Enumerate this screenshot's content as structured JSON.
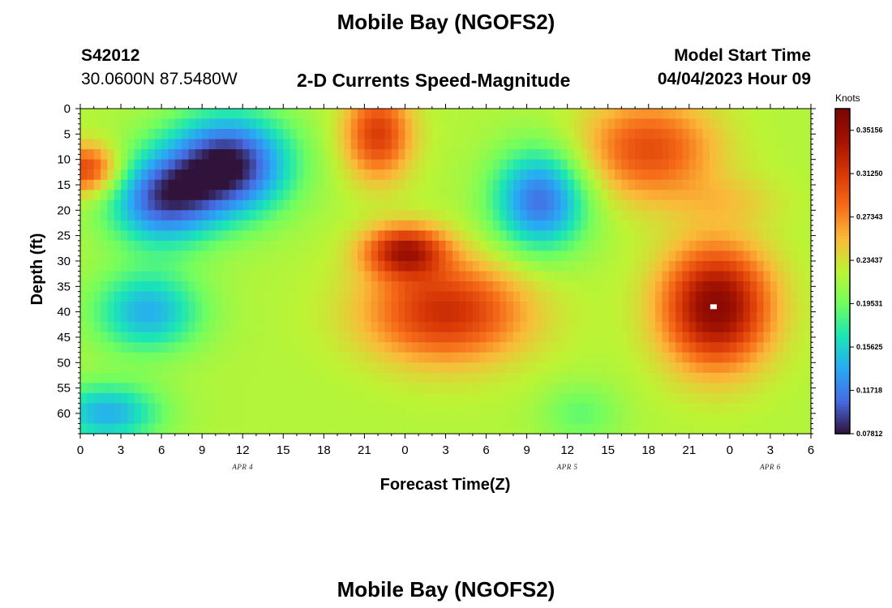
{
  "header": {
    "title": "Mobile Bay (NGOFS2)",
    "station_id": "S42012",
    "location": "30.0600N  87.5480W",
    "subtitle": "2-D Currents Speed-Magnitude",
    "model_start_label": "Model Start Time",
    "model_start_value": "04/04/2023 Hour 09"
  },
  "footer": {
    "title": "Mobile Bay (NGOFS2)"
  },
  "colors": {
    "low": "#30123b",
    "high": "#7a0403",
    "marker": "#ffffff"
  },
  "chart_data": {
    "type": "heatmap",
    "colormap": "turbo",
    "xlabel": "Forecast Time(Z)",
    "ylabel": "Depth (ft)",
    "x_tick_labels": [
      "0",
      "3",
      "6",
      "9",
      "12",
      "15",
      "18",
      "21",
      "0",
      "3",
      "6",
      "9",
      "12",
      "15",
      "18",
      "21",
      "0",
      "3",
      "6"
    ],
    "x_range_hours": [
      0,
      54
    ],
    "date_labels": [
      {
        "text": "APR 4",
        "hour": 12
      },
      {
        "text": "APR 5",
        "hour": 36
      },
      {
        "text": "APR 6",
        "hour": 51
      }
    ],
    "y_ticks": [
      0,
      5,
      10,
      15,
      20,
      25,
      30,
      35,
      40,
      45,
      50,
      55,
      60
    ],
    "y_range": [
      0,
      64
    ],
    "y_inverted": true,
    "colorbar": {
      "title": "Knots",
      "labels": [
        "0.35156",
        "0.31250",
        "0.27343",
        "0.23437",
        "0.19531",
        "0.15625",
        "0.11718",
        "0.07812"
      ],
      "min": 0.07812,
      "max": 0.37109
    },
    "value_features": [
      {
        "hour": 0.5,
        "depth": 12,
        "value": 0.31,
        "spread_h": 2.5,
        "spread_d": 5
      },
      {
        "hour": 11,
        "depth": 11,
        "value": 0.08,
        "spread_h": 4.5,
        "spread_d": 10
      },
      {
        "hour": 22,
        "depth": 5,
        "value": 0.31,
        "spread_h": 2.5,
        "spread_d": 9
      },
      {
        "hour": 6,
        "depth": 18,
        "value": 0.11,
        "spread_h": 4,
        "spread_d": 9
      },
      {
        "hour": 24,
        "depth": 28,
        "value": 0.33,
        "spread_h": 3,
        "spread_d": 5
      },
      {
        "hour": 27,
        "depth": 40,
        "value": 0.32,
        "spread_h": 6,
        "spread_d": 10
      },
      {
        "hour": 34,
        "depth": 18,
        "value": 0.11,
        "spread_h": 3.5,
        "spread_d": 10
      },
      {
        "hour": 42,
        "depth": 8,
        "value": 0.3,
        "spread_h": 5,
        "spread_d": 10
      },
      {
        "hour": 47,
        "depth": 39,
        "value": 0.36,
        "spread_h": 4,
        "spread_d": 12
      },
      {
        "hour": 5,
        "depth": 40,
        "value": 0.14,
        "spread_h": 4,
        "spread_d": 8
      },
      {
        "hour": 2,
        "depth": 60,
        "value": 0.14,
        "spread_h": 4,
        "spread_d": 6
      },
      {
        "hour": 37,
        "depth": 60,
        "value": 0.19,
        "spread_h": 3,
        "spread_d": 6
      },
      {
        "hour": 48,
        "depth": 18,
        "value": 0.24,
        "spread_h": 4,
        "spread_d": 5
      }
    ],
    "max_marker": {
      "hour": 46.8,
      "depth": 39
    }
  }
}
